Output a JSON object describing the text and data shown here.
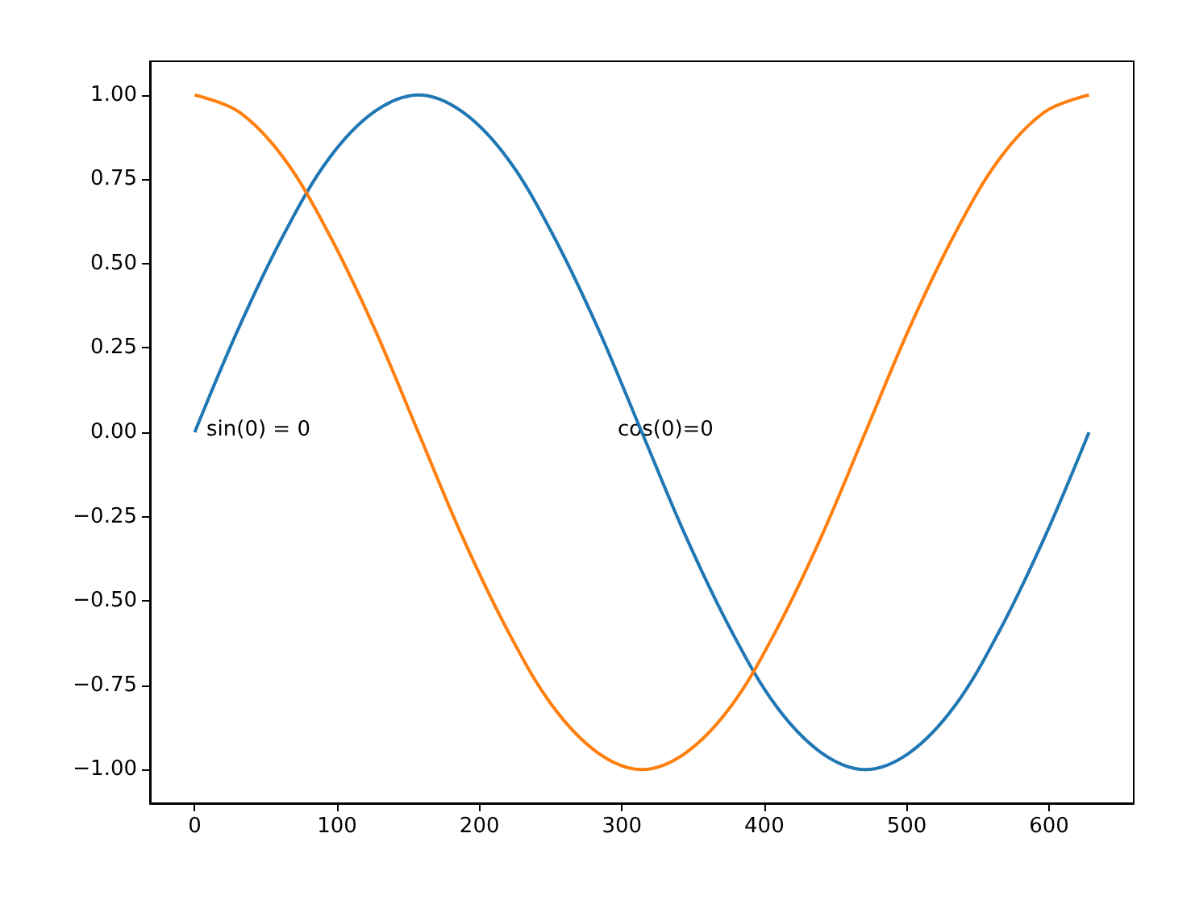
{
  "chart_data": {
    "type": "line",
    "x": [
      0,
      31,
      63,
      94,
      126,
      157,
      188,
      220,
      251,
      283,
      314,
      345,
      377,
      408,
      440,
      471,
      502,
      534,
      565,
      597,
      628
    ],
    "series": [
      {
        "color": "#1f77b4",
        "values": [
          0,
          0.31,
          0.59,
          0.81,
          0.95,
          1,
          0.95,
          0.81,
          0.59,
          0.31,
          0,
          -0.31,
          -0.59,
          -0.81,
          -0.95,
          -1,
          -0.95,
          -0.81,
          -0.59,
          -0.31,
          0
        ]
      },
      {
        "color": "#ff7f0e",
        "values": [
          1,
          0.95,
          0.81,
          0.59,
          0.31,
          0,
          -0.31,
          -0.59,
          -0.81,
          -0.95,
          -1,
          -0.95,
          -0.81,
          -0.59,
          -0.31,
          0,
          0.31,
          0.59,
          0.81,
          0.95,
          1
        ]
      }
    ],
    "xlim": [
      -31.4,
      659.4
    ],
    "xticks": [
      0,
      100,
      200,
      300,
      400,
      500,
      600
    ],
    "ylim": [
      -1.1,
      1.1
    ],
    "yticks": [
      {
        "value": -1,
        "label": "−1.00"
      },
      {
        "value": -0.75,
        "label": "−0.75"
      },
      {
        "value": -0.5,
        "label": "−0.50"
      },
      {
        "value": -0.25,
        "label": "−0.25"
      },
      {
        "value": 0,
        "label": "0.00"
      },
      {
        "value": 0.25,
        "label": "0.25"
      },
      {
        "value": 0.5,
        "label": "0.50"
      },
      {
        "value": 0.75,
        "label": "0.75"
      },
      {
        "value": 1,
        "label": "1.00"
      }
    ],
    "annotations": [
      "sin(0) = 0",
      "cos(0)=0"
    ],
    "grid": false,
    "marker": "none",
    "line_style": "solid"
  }
}
